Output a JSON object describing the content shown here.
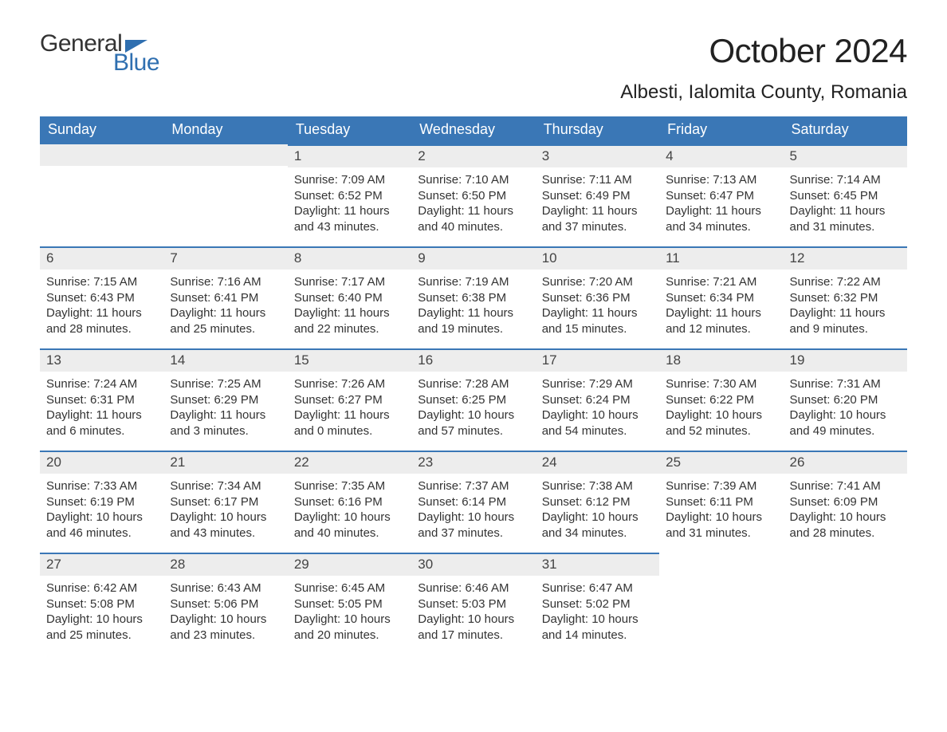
{
  "brand": {
    "part1": "General",
    "part2": "Blue"
  },
  "title": "October 2024",
  "location": "Albesti, Ialomita County, Romania",
  "colors": {
    "header_bg": "#3a77b6",
    "header_text": "#ffffff",
    "daynum_bg": "#ededed",
    "body_text": "#333333",
    "rule": "#3a77b6",
    "brand_blue": "#2f6fb0"
  },
  "columns": [
    "Sunday",
    "Monday",
    "Tuesday",
    "Wednesday",
    "Thursday",
    "Friday",
    "Saturday"
  ],
  "weeks": [
    [
      null,
      null,
      {
        "n": "1",
        "sunrise": "7:09 AM",
        "sunset": "6:52 PM",
        "dl": "11 hours and 43 minutes."
      },
      {
        "n": "2",
        "sunrise": "7:10 AM",
        "sunset": "6:50 PM",
        "dl": "11 hours and 40 minutes."
      },
      {
        "n": "3",
        "sunrise": "7:11 AM",
        "sunset": "6:49 PM",
        "dl": "11 hours and 37 minutes."
      },
      {
        "n": "4",
        "sunrise": "7:13 AM",
        "sunset": "6:47 PM",
        "dl": "11 hours and 34 minutes."
      },
      {
        "n": "5",
        "sunrise": "7:14 AM",
        "sunset": "6:45 PM",
        "dl": "11 hours and 31 minutes."
      }
    ],
    [
      {
        "n": "6",
        "sunrise": "7:15 AM",
        "sunset": "6:43 PM",
        "dl": "11 hours and 28 minutes."
      },
      {
        "n": "7",
        "sunrise": "7:16 AM",
        "sunset": "6:41 PM",
        "dl": "11 hours and 25 minutes."
      },
      {
        "n": "8",
        "sunrise": "7:17 AM",
        "sunset": "6:40 PM",
        "dl": "11 hours and 22 minutes."
      },
      {
        "n": "9",
        "sunrise": "7:19 AM",
        "sunset": "6:38 PM",
        "dl": "11 hours and 19 minutes."
      },
      {
        "n": "10",
        "sunrise": "7:20 AM",
        "sunset": "6:36 PM",
        "dl": "11 hours and 15 minutes."
      },
      {
        "n": "11",
        "sunrise": "7:21 AM",
        "sunset": "6:34 PM",
        "dl": "11 hours and 12 minutes."
      },
      {
        "n": "12",
        "sunrise": "7:22 AM",
        "sunset": "6:32 PM",
        "dl": "11 hours and 9 minutes."
      }
    ],
    [
      {
        "n": "13",
        "sunrise": "7:24 AM",
        "sunset": "6:31 PM",
        "dl": "11 hours and 6 minutes."
      },
      {
        "n": "14",
        "sunrise": "7:25 AM",
        "sunset": "6:29 PM",
        "dl": "11 hours and 3 minutes."
      },
      {
        "n": "15",
        "sunrise": "7:26 AM",
        "sunset": "6:27 PM",
        "dl": "11 hours and 0 minutes."
      },
      {
        "n": "16",
        "sunrise": "7:28 AM",
        "sunset": "6:25 PM",
        "dl": "10 hours and 57 minutes."
      },
      {
        "n": "17",
        "sunrise": "7:29 AM",
        "sunset": "6:24 PM",
        "dl": "10 hours and 54 minutes."
      },
      {
        "n": "18",
        "sunrise": "7:30 AM",
        "sunset": "6:22 PM",
        "dl": "10 hours and 52 minutes."
      },
      {
        "n": "19",
        "sunrise": "7:31 AM",
        "sunset": "6:20 PM",
        "dl": "10 hours and 49 minutes."
      }
    ],
    [
      {
        "n": "20",
        "sunrise": "7:33 AM",
        "sunset": "6:19 PM",
        "dl": "10 hours and 46 minutes."
      },
      {
        "n": "21",
        "sunrise": "7:34 AM",
        "sunset": "6:17 PM",
        "dl": "10 hours and 43 minutes."
      },
      {
        "n": "22",
        "sunrise": "7:35 AM",
        "sunset": "6:16 PM",
        "dl": "10 hours and 40 minutes."
      },
      {
        "n": "23",
        "sunrise": "7:37 AM",
        "sunset": "6:14 PM",
        "dl": "10 hours and 37 minutes."
      },
      {
        "n": "24",
        "sunrise": "7:38 AM",
        "sunset": "6:12 PM",
        "dl": "10 hours and 34 minutes."
      },
      {
        "n": "25",
        "sunrise": "7:39 AM",
        "sunset": "6:11 PM",
        "dl": "10 hours and 31 minutes."
      },
      {
        "n": "26",
        "sunrise": "7:41 AM",
        "sunset": "6:09 PM",
        "dl": "10 hours and 28 minutes."
      }
    ],
    [
      {
        "n": "27",
        "sunrise": "6:42 AM",
        "sunset": "5:08 PM",
        "dl": "10 hours and 25 minutes."
      },
      {
        "n": "28",
        "sunrise": "6:43 AM",
        "sunset": "5:06 PM",
        "dl": "10 hours and 23 minutes."
      },
      {
        "n": "29",
        "sunrise": "6:45 AM",
        "sunset": "5:05 PM",
        "dl": "10 hours and 20 minutes."
      },
      {
        "n": "30",
        "sunrise": "6:46 AM",
        "sunset": "5:03 PM",
        "dl": "10 hours and 17 minutes."
      },
      {
        "n": "31",
        "sunrise": "6:47 AM",
        "sunset": "5:02 PM",
        "dl": "10 hours and 14 minutes."
      },
      null,
      null
    ]
  ],
  "labels": {
    "sunrise": "Sunrise: ",
    "sunset": "Sunset: ",
    "daylight": "Daylight: "
  }
}
